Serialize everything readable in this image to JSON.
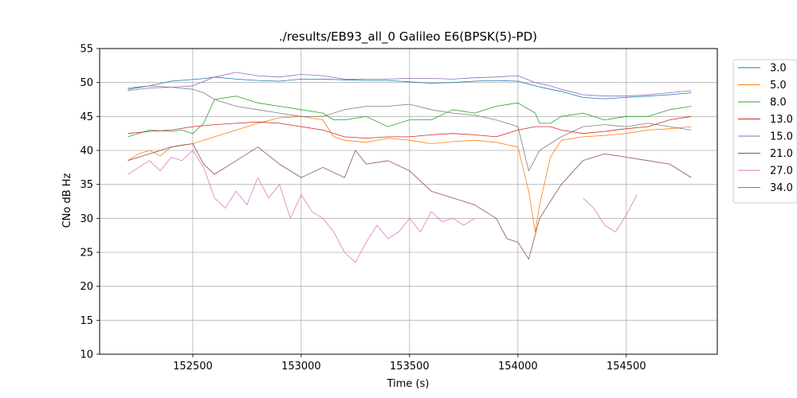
{
  "chart_data": {
    "type": "line",
    "title": "./results/EB93_all_0 Galileo E6(BPSK(5)-PD)",
    "xlabel": "Time (s)",
    "ylabel": "CNo dB Hz",
    "xlim": [
      152070,
      154920
    ],
    "ylim": [
      10,
      55
    ],
    "xticks": [
      152500,
      153000,
      153500,
      154000,
      154500
    ],
    "yticks": [
      10,
      15,
      20,
      25,
      30,
      35,
      40,
      45,
      50,
      55
    ],
    "grid": true,
    "legend_position": "outside-top-right",
    "series": [
      {
        "name": "3.0",
        "color": "#1f77b4",
        "segments": [
          {
            "x": [
              152200,
              152300,
              152400,
              152440,
              152560,
              152600,
              152700,
              152800,
              152900,
              153000,
              153100,
              153200,
              153300,
              153400,
              153500,
              153600,
              153700,
              153800,
              153900,
              154000,
              154080,
              154150,
              154200,
              154300,
              154400,
              154500,
              154600,
              154700,
              154800
            ],
            "y": [
              49.0,
              49.5,
              50.2,
              50.3,
              50.6,
              50.8,
              50.5,
              50.3,
              50.2,
              50.5,
              50.5,
              50.4,
              50.3,
              50.3,
              50.1,
              49.9,
              50.0,
              50.2,
              50.3,
              50.2,
              49.5,
              49.0,
              48.7,
              47.8,
              47.6,
              47.8,
              48.0,
              48.2,
              48.5
            ]
          }
        ]
      },
      {
        "name": "5.0",
        "color": "#ff7f0e",
        "segments": [
          {
            "x": [
              152200,
              152250,
              152300,
              152350,
              152400,
              152450,
              152500,
              152600,
              152700,
              152800,
              152900,
              153000,
              153100,
              153150,
              153200,
              153300,
              153400,
              153500,
              153600,
              153700,
              153800,
              153900,
              154000,
              154050,
              154080,
              154100,
              154150,
              154200,
              154300,
              154400,
              154500,
              154600,
              154700,
              154800
            ],
            "y": [
              38.5,
              39.5,
              40.0,
              39.2,
              40.5,
              40.8,
              41.0,
              42.0,
              43.0,
              44.0,
              44.8,
              45.0,
              44.5,
              42.0,
              41.5,
              41.2,
              41.8,
              41.5,
              41.0,
              41.3,
              41.5,
              41.2,
              40.5,
              34.0,
              28.0,
              32.0,
              39.0,
              41.5,
              42.0,
              42.2,
              42.5,
              43.0,
              43.2,
              43.5
            ]
          }
        ]
      },
      {
        "name": "8.0",
        "color": "#2ca02c",
        "segments": [
          {
            "x": [
              152200,
              152300,
              152400,
              152450,
              152500,
              152550,
              152600,
              152700,
              152800,
              152900,
              153000,
              153100,
              153150,
              153200,
              153300,
              153400,
              153500,
              153600,
              153700,
              153800,
              153900,
              154000,
              154080,
              154100,
              154150,
              154200,
              154300,
              154400,
              154500,
              154600,
              154700,
              154800
            ],
            "y": [
              42.0,
              43.0,
              42.8,
              43.0,
              42.5,
              44.0,
              47.5,
              48.0,
              47.0,
              46.5,
              46.0,
              45.5,
              44.5,
              44.5,
              45.0,
              43.5,
              44.5,
              44.5,
              46.0,
              45.5,
              46.5,
              47.0,
              45.5,
              44.0,
              44.0,
              45.0,
              45.5,
              44.5,
              45.0,
              45.0,
              46.0,
              46.5
            ]
          }
        ]
      },
      {
        "name": "13.0",
        "color": "#d62728",
        "segments": [
          {
            "x": [
              152200,
              152300,
              152400,
              152500,
              152600,
              152700,
              152800,
              152900,
              153000,
              153100,
              153200,
              153300,
              153400,
              153500,
              153600,
              153700,
              153800,
              153900,
              154000,
              154080,
              154150,
              154200,
              154300,
              154400,
              154500,
              154600,
              154700,
              154800
            ],
            "y": [
              42.5,
              42.8,
              43.0,
              43.5,
              43.8,
              44.0,
              44.2,
              44.0,
              43.5,
              43.0,
              42.0,
              41.8,
              42.0,
              42.0,
              42.3,
              42.5,
              42.3,
              42.0,
              43.0,
              43.5,
              43.5,
              43.0,
              42.5,
              42.8,
              43.2,
              43.5,
              44.5,
              45.0
            ]
          }
        ]
      },
      {
        "name": "15.0",
        "color": "#9467bd",
        "segments": [
          {
            "x": [
              152200,
              152300,
              152400,
              152500,
              152600,
              152700,
              152800,
              152900,
              153000,
              153100,
              153200,
              153300,
              153400,
              153500,
              153600,
              153700,
              153800,
              153900,
              154000,
              154080,
              154150,
              154200,
              154300,
              154400,
              154500,
              154600,
              154700,
              154800
            ],
            "y": [
              48.8,
              49.2,
              49.3,
              49.5,
              50.8,
              51.5,
              51.0,
              50.8,
              51.2,
              51.0,
              50.5,
              50.5,
              50.5,
              50.6,
              50.6,
              50.5,
              50.7,
              50.8,
              51.0,
              50.0,
              49.5,
              49.0,
              48.2,
              48.0,
              48.0,
              48.2,
              48.5,
              48.8
            ]
          }
        ]
      },
      {
        "name": "21.0",
        "color": "#8c564b",
        "segments": [
          {
            "x": [
              152200,
              152300,
              152400,
              152500,
              152550,
              152600,
              152700,
              152800,
              152900,
              153000,
              153100,
              153200,
              153250,
              153300,
              153400,
              153500,
              153600,
              153700,
              153800,
              153900,
              153950,
              154000,
              154050,
              154100,
              154200,
              154300,
              154400,
              154500,
              154600,
              154700,
              154800
            ],
            "y": [
              38.5,
              39.5,
              40.5,
              41.0,
              38.0,
              36.5,
              38.5,
              40.5,
              38.0,
              36.0,
              37.5,
              36.0,
              40.0,
              38.0,
              38.5,
              37.0,
              34.0,
              33.0,
              32.0,
              30.0,
              27.0,
              26.5,
              24.0,
              30.0,
              35.0,
              38.5,
              39.5,
              39.0,
              38.5,
              38.0,
              36.0
            ]
          }
        ]
      },
      {
        "name": "27.0",
        "color": "#e377c2",
        "segments": [
          {
            "x": [
              152200,
              152250,
              152300,
              152350,
              152400,
              152450,
              152500,
              152550,
              152600,
              152650,
              152700,
              152750,
              152800,
              152850,
              152900,
              152950,
              153000,
              153050,
              153100,
              153150,
              153200,
              153250,
              153300,
              153350,
              153400,
              153450,
              153500,
              153550,
              153600,
              153650,
              153700,
              153750,
              153800
            ],
            "y": [
              36.5,
              37.5,
              38.5,
              37.0,
              39.0,
              38.5,
              40.0,
              37.5,
              33.0,
              31.5,
              34.0,
              32.0,
              36.0,
              33.0,
              35.0,
              30.0,
              33.5,
              31.0,
              30.0,
              28.0,
              25.0,
              23.5,
              26.5,
              29.0,
              27.0,
              28.0,
              30.0,
              28.0,
              31.0,
              29.5,
              30.0,
              29.0,
              30.0
            ]
          },
          {
            "x": [
              154300,
              154350,
              154400,
              154450,
              154500,
              154550
            ],
            "y": [
              33.0,
              31.5,
              29.0,
              28.0,
              30.5,
              33.5
            ]
          }
        ]
      },
      {
        "name": "34.0",
        "color": "#7f7f7f",
        "segments": [
          {
            "x": [
              152200,
              152300,
              152400,
              152500,
              152550,
              152600,
              152700,
              152800,
              152900,
              153000,
              153100,
              153200,
              153300,
              153400,
              153500,
              153600,
              153700,
              153800,
              153900,
              154000,
              154050,
              154100,
              154200,
              154300,
              154400,
              154500,
              154600,
              154700,
              154800
            ],
            "y": [
              49.2,
              49.5,
              49.3,
              49.0,
              48.5,
              47.5,
              46.5,
              46.0,
              45.5,
              45.0,
              45.0,
              46.0,
              46.5,
              46.5,
              46.8,
              46.0,
              45.5,
              45.2,
              44.5,
              43.5,
              37.0,
              40.0,
              42.0,
              43.5,
              43.8,
              43.5,
              44.0,
              43.5,
              43.0
            ]
          }
        ]
      }
    ]
  }
}
